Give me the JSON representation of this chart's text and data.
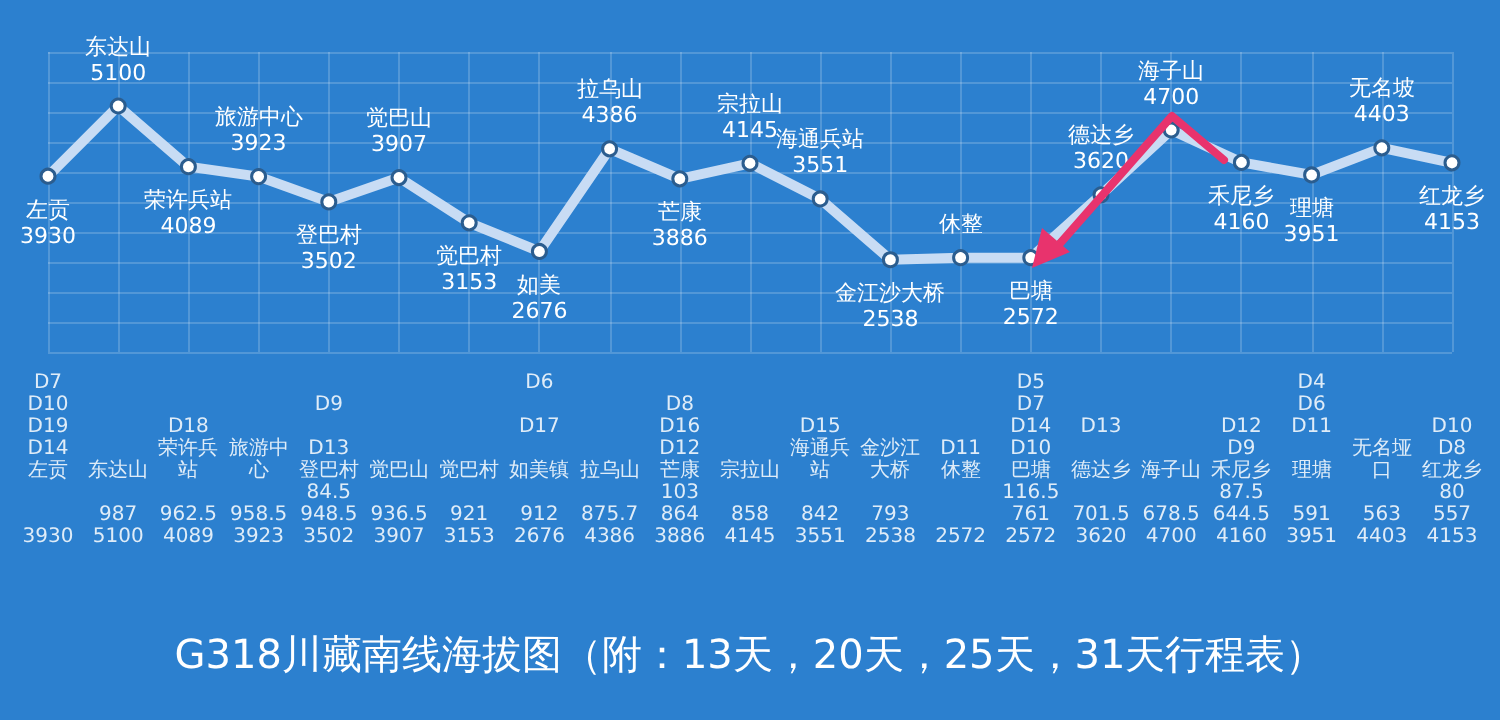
{
  "chart_data": {
    "type": "line",
    "title": "G318川藏南线海拔图（附：13天，20天，25天，31天行程表）",
    "categories": [
      "左贡",
      "东达山",
      "荣许兵站",
      "旅游中心",
      "登巴村",
      "觉巴山",
      "觉巴村",
      "如美",
      "拉乌山",
      "芒康",
      "宗拉山",
      "海通兵站",
      "金江沙大桥",
      "休整",
      "巴塘",
      "德达乡",
      "海子山",
      "禾尼乡",
      "理塘",
      "无名坡",
      "红龙乡"
    ],
    "values": [
      3930,
      5100,
      4089,
      3923,
      3502,
      3907,
      3153,
      2676,
      4386,
      3886,
      4145,
      3551,
      2538,
      2572,
      2572,
      3620,
      4700,
      4160,
      3951,
      4403,
      4153
    ],
    "value_labels": [
      "3930",
      "5100",
      "4089",
      "3923",
      "3502",
      "3907",
      "3153",
      "2676",
      "4386",
      "3886",
      "4145",
      "3551",
      "2538",
      null,
      "2572",
      "3620",
      "4700",
      "4160",
      "3951",
      "4403",
      "4153"
    ],
    "color": "#c8dcf4",
    "marker": "circle",
    "line_style": "solid",
    "ylim": [
      1000,
      6000
    ],
    "yticks": [
      {
        "value": 1000,
        "label": null
      },
      {
        "value": 1500,
        "label": null
      },
      {
        "value": 2000,
        "label": null
      },
      {
        "value": 2500,
        "label": null
      },
      {
        "value": 3000,
        "label": null
      },
      {
        "value": 3500,
        "label": null
      },
      {
        "value": 4000,
        "label": null
      },
      {
        "value": 4500,
        "label": null
      },
      {
        "value": 5000,
        "label": null
      },
      {
        "value": 5500,
        "label": null
      },
      {
        "value": 6000,
        "label": null
      }
    ],
    "grid": true,
    "tick_labels": false,
    "annotations": [
      "D7\nD10\nD19\nD14\n左贡\n\n\n3930",
      "\n\n\n\n东达山\n\n987\n5100",
      "\n\nD18\n\n荣许兵站\n\n962.5\n4089",
      "\n\n\n\n旅游中心\n\n958.5\n3923",
      "\nD9\n\nD13\n登巴村\n84.5\n948.5\n3502",
      "\n\n\n\n觉巴山\n\n936.5\n3907",
      "\n\n\n\n觉巴村\n\n921\n3153",
      "D6\n\nD17\n\n如美镇\n\n912\n2676",
      "\n\n\n\n拉乌山\n\n875.7\n4386",
      "\nD8\nD16\nD12\n芒康\n103\n864\n3886",
      "\n\n\n\n宗拉山\n\n858\n4145",
      "\n\nD15\n\n海通兵站\n\n842\n3551",
      "\n\n\n\n金沙江大桥\n\n793\n2538",
      "\n\n\nD11\n休整\n\n\n2572",
      "D5\nD7\nD14\nD10\n巴塘\n116.5\n761\n2572",
      "\n\nD13\n\n德达乡\n\n701.5\n3620",
      "\n\n\n\n海子山\n\n678.5\n4700",
      "\n\nD12\nD9\n禾尼乡\n87.5\n644.5\n4160",
      "D4\nD6\nD11\n\n理塘\n\n591\n3951",
      "\n\n\n\n无名垭口\n\n563\n4403",
      "\n\nD10\nD8\n红龙乡\n80\n557\n4153"
    ]
  }
}
